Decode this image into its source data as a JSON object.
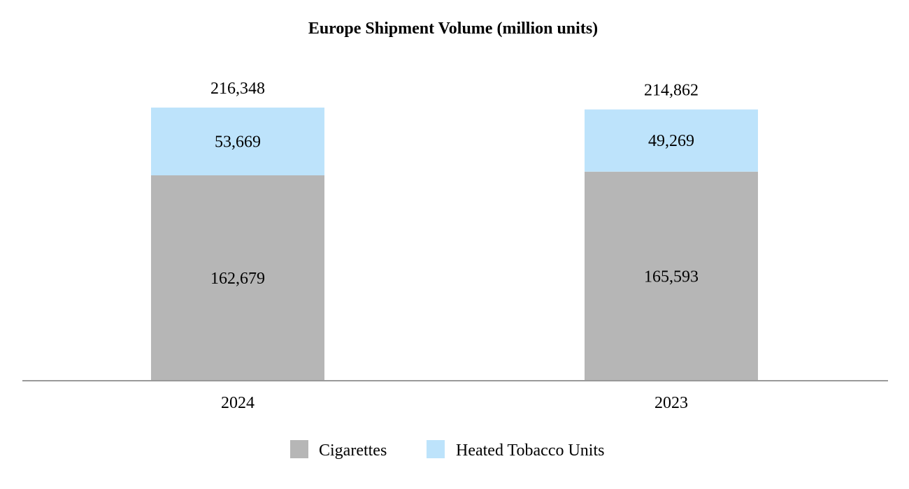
{
  "chart_data": {
    "type": "bar",
    "stacked": true,
    "title": "Europe Shipment Volume (million units)",
    "xlabel": "",
    "ylabel": "",
    "categories": [
      "2024",
      "2023"
    ],
    "series": [
      {
        "name": "Cigarettes",
        "color": "#b6b6b6",
        "values": [
          162679,
          165593
        ],
        "value_labels": [
          "162,679",
          "165,593"
        ]
      },
      {
        "name": "Heated Tobacco Units",
        "color": "#bde3fb",
        "values": [
          53669,
          49269
        ],
        "value_labels": [
          "53,669",
          "49,269"
        ]
      }
    ],
    "totals": [
      216348,
      214862
    ],
    "total_labels": [
      "216,348",
      "214,862"
    ],
    "ylim": [
      0,
      240000
    ],
    "grid": false,
    "legend": "bottom-center",
    "axis_color": "#999999"
  }
}
